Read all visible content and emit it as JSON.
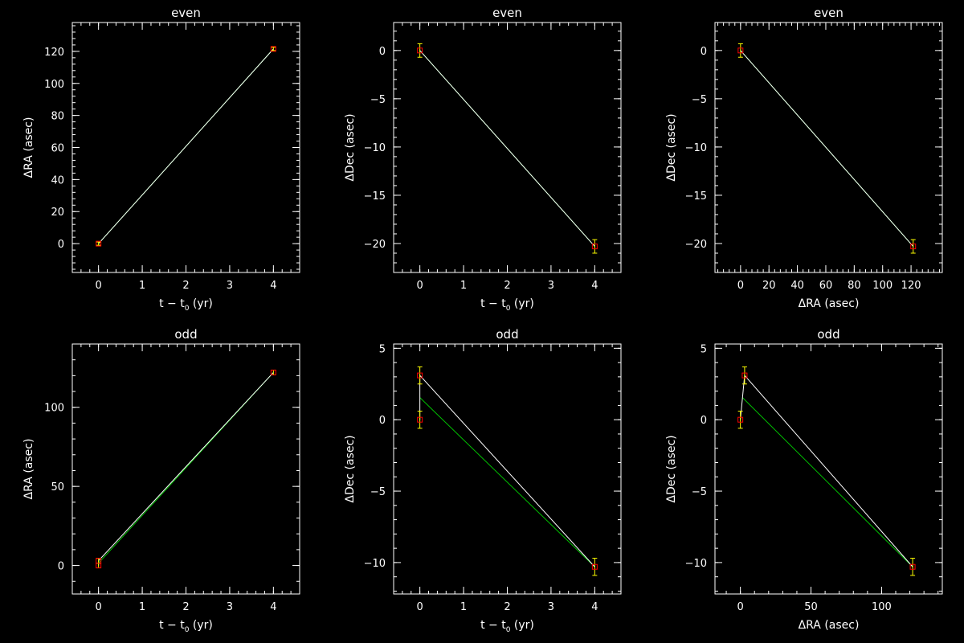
{
  "chart_data": [
    {
      "type": "scatter",
      "title": "even",
      "xlabel": "t − t",
      "xlabel_sub": "0",
      "xlabel_unit": " (yr)",
      "ylabel": "ΔRA (asec)",
      "xlim": [
        -0.6,
        4.6
      ],
      "ylim": [
        -18,
        138
      ],
      "xticks": [
        0,
        1,
        2,
        3,
        4
      ],
      "xtick_labels": [
        "0",
        "1",
        "2",
        "3",
        "4"
      ],
      "yticks": [
        0,
        20,
        40,
        60,
        80,
        100,
        120
      ],
      "ytick_labels": [
        "0",
        "20",
        "40",
        "60",
        "80",
        "100",
        "120"
      ],
      "points": [
        {
          "x": 0,
          "y": 0,
          "err": 1.0
        },
        {
          "x": 4,
          "y": 121.5,
          "err": 1.0
        }
      ],
      "fit": [
        [
          0,
          0
        ],
        [
          4,
          121.5
        ]
      ],
      "connect": [
        [
          0,
          0
        ],
        [
          4,
          121.5
        ]
      ]
    },
    {
      "type": "scatter",
      "title": "even",
      "xlabel": "t − t",
      "xlabel_sub": "0",
      "xlabel_unit": " (yr)",
      "ylabel": "ΔDec (asec)",
      "xlim": [
        -0.6,
        4.6
      ],
      "ylim": [
        -23.0,
        2.9
      ],
      "xticks": [
        0,
        1,
        2,
        3,
        4
      ],
      "xtick_labels": [
        "0",
        "1",
        "2",
        "3",
        "4"
      ],
      "yticks": [
        0,
        -5,
        -10,
        -15,
        -20
      ],
      "ytick_labels": [
        "0",
        "−5",
        "−10",
        "−15",
        "−20"
      ],
      "points": [
        {
          "x": 0,
          "y": 0,
          "err": 0.7
        },
        {
          "x": 4,
          "y": -20.3,
          "err": 0.7
        }
      ],
      "fit": [
        [
          0,
          0
        ],
        [
          4,
          -20.3
        ]
      ],
      "connect": [
        [
          0,
          0
        ],
        [
          4,
          -20.3
        ]
      ]
    },
    {
      "type": "scatter",
      "title": "even",
      "xlabel": "ΔRA (asec)",
      "ylabel": "ΔDec (asec)",
      "xlim": [
        -18,
        142
      ],
      "ylim": [
        -23.0,
        2.9
      ],
      "xticks": [
        0,
        20,
        40,
        60,
        80,
        100,
        120
      ],
      "xtick_labels": [
        "0",
        "20",
        "40",
        "60",
        "80",
        "100",
        "120"
      ],
      "yticks": [
        0,
        -5,
        -10,
        -15,
        -20
      ],
      "ytick_labels": [
        "0",
        "−5",
        "−10",
        "−15",
        "−20"
      ],
      "points": [
        {
          "x": 0,
          "y": 0,
          "err": 0.7
        },
        {
          "x": 121.5,
          "y": -20.3,
          "err": 0.7
        }
      ],
      "fit": [
        [
          0,
          0
        ],
        [
          121.5,
          -20.3
        ]
      ],
      "connect": [
        [
          0,
          0
        ],
        [
          121.5,
          -20.3
        ]
      ]
    },
    {
      "type": "scatter",
      "title": "odd",
      "xlabel": "t − t",
      "xlabel_sub": "0",
      "xlabel_unit": " (yr)",
      "ylabel": "ΔRA (asec)",
      "xlim": [
        -0.6,
        4.6
      ],
      "ylim": [
        -18,
        140
      ],
      "xticks": [
        0,
        1,
        2,
        3,
        4
      ],
      "xtick_labels": [
        "0",
        "1",
        "2",
        "3",
        "4"
      ],
      "yticks": [
        0,
        50,
        100
      ],
      "ytick_labels": [
        "0",
        "50",
        "100"
      ],
      "points": [
        {
          "x": 0,
          "y": 0,
          "err": 1.5
        },
        {
          "x": 0,
          "y": 3,
          "err": 1.5
        },
        {
          "x": 4,
          "y": 122,
          "err": 1.5
        }
      ],
      "fit": [
        [
          0,
          1.5
        ],
        [
          4,
          122
        ]
      ],
      "connect": [
        [
          0,
          0
        ],
        [
          0,
          3
        ],
        [
          4,
          122
        ]
      ]
    },
    {
      "type": "scatter",
      "title": "odd",
      "xlabel": "t − t",
      "xlabel_sub": "0",
      "xlabel_unit": " (yr)",
      "ylabel": "ΔDec (asec)",
      "xlim": [
        -0.6,
        4.6
      ],
      "ylim": [
        -12.2,
        5.3
      ],
      "xticks": [
        0,
        1,
        2,
        3,
        4
      ],
      "xtick_labels": [
        "0",
        "1",
        "2",
        "3",
        "4"
      ],
      "yticks": [
        5,
        0,
        -5,
        -10
      ],
      "ytick_labels": [
        "5",
        "0",
        "−5",
        "−10"
      ],
      "points": [
        {
          "x": 0,
          "y": 0,
          "err": 0.6
        },
        {
          "x": 0,
          "y": 3.1,
          "err": 0.6
        },
        {
          "x": 4,
          "y": -10.3,
          "err": 0.6
        }
      ],
      "fit": [
        [
          0,
          1.55
        ],
        [
          4,
          -10.3
        ]
      ],
      "connect": [
        [
          0,
          0
        ],
        [
          0,
          3.1
        ],
        [
          4,
          -10.3
        ]
      ]
    },
    {
      "type": "scatter",
      "title": "odd",
      "xlabel": "ΔRA (asec)",
      "ylabel": "ΔDec (asec)",
      "xlim": [
        -18,
        143
      ],
      "ylim": [
        -12.2,
        5.3
      ],
      "xticks": [
        0,
        50,
        100
      ],
      "xtick_labels": [
        "0",
        "50",
        "100"
      ],
      "yticks": [
        5,
        0,
        -5,
        -10
      ],
      "ytick_labels": [
        "5",
        "0",
        "−5",
        "−10"
      ],
      "points": [
        {
          "x": 0,
          "y": 0,
          "err": 0.6
        },
        {
          "x": 3,
          "y": 3.1,
          "err": 0.6
        },
        {
          "x": 122,
          "y": -10.3,
          "err": 0.6
        }
      ],
      "fit": [
        [
          1.5,
          1.55
        ],
        [
          122,
          -10.3
        ]
      ],
      "connect": [
        [
          0,
          0
        ],
        [
          3,
          3.1
        ],
        [
          122,
          -10.3
        ]
      ]
    }
  ],
  "colors": {
    "background": "#000000",
    "axes": "#ffffff",
    "fit_line": "#00c000",
    "connect_line": "#ffffff",
    "error_bar": "#ffff00",
    "marker": "#ff0000"
  }
}
